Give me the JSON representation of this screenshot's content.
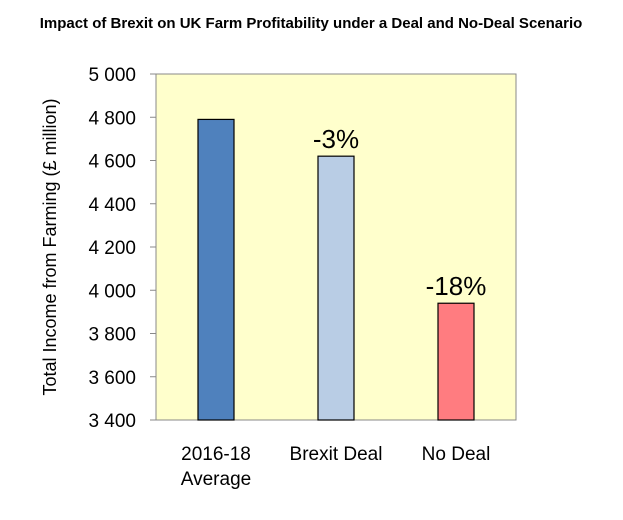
{
  "chart_data": {
    "type": "bar",
    "title": "Impact of Brexit on UK Farm Profitability under a Deal and No-Deal Scenario",
    "ylabel": "Total Income from Farming (£ million)",
    "xlabel": "",
    "categories": [
      [
        "2016-18",
        "Average"
      ],
      [
        "Brexit Deal"
      ],
      [
        "No Deal"
      ]
    ],
    "values": [
      4790,
      4620,
      3940
    ],
    "bar_colors": [
      "#4f81bd",
      "#b9cde5",
      "#ff7c80"
    ],
    "data_labels": [
      "",
      "-3%",
      "-18%"
    ],
    "ylim": [
      3400,
      5000
    ],
    "yticks": [
      3400,
      3600,
      3800,
      4000,
      4200,
      4400,
      4600,
      4800,
      5000
    ],
    "ytick_labels": [
      "3 400",
      "3 600",
      "3 800",
      "4 000",
      "4 200",
      "4 400",
      "4 600",
      "4 800",
      "5 000"
    ],
    "plot_background": "#ffffcc",
    "grid": false,
    "legend": "none"
  }
}
